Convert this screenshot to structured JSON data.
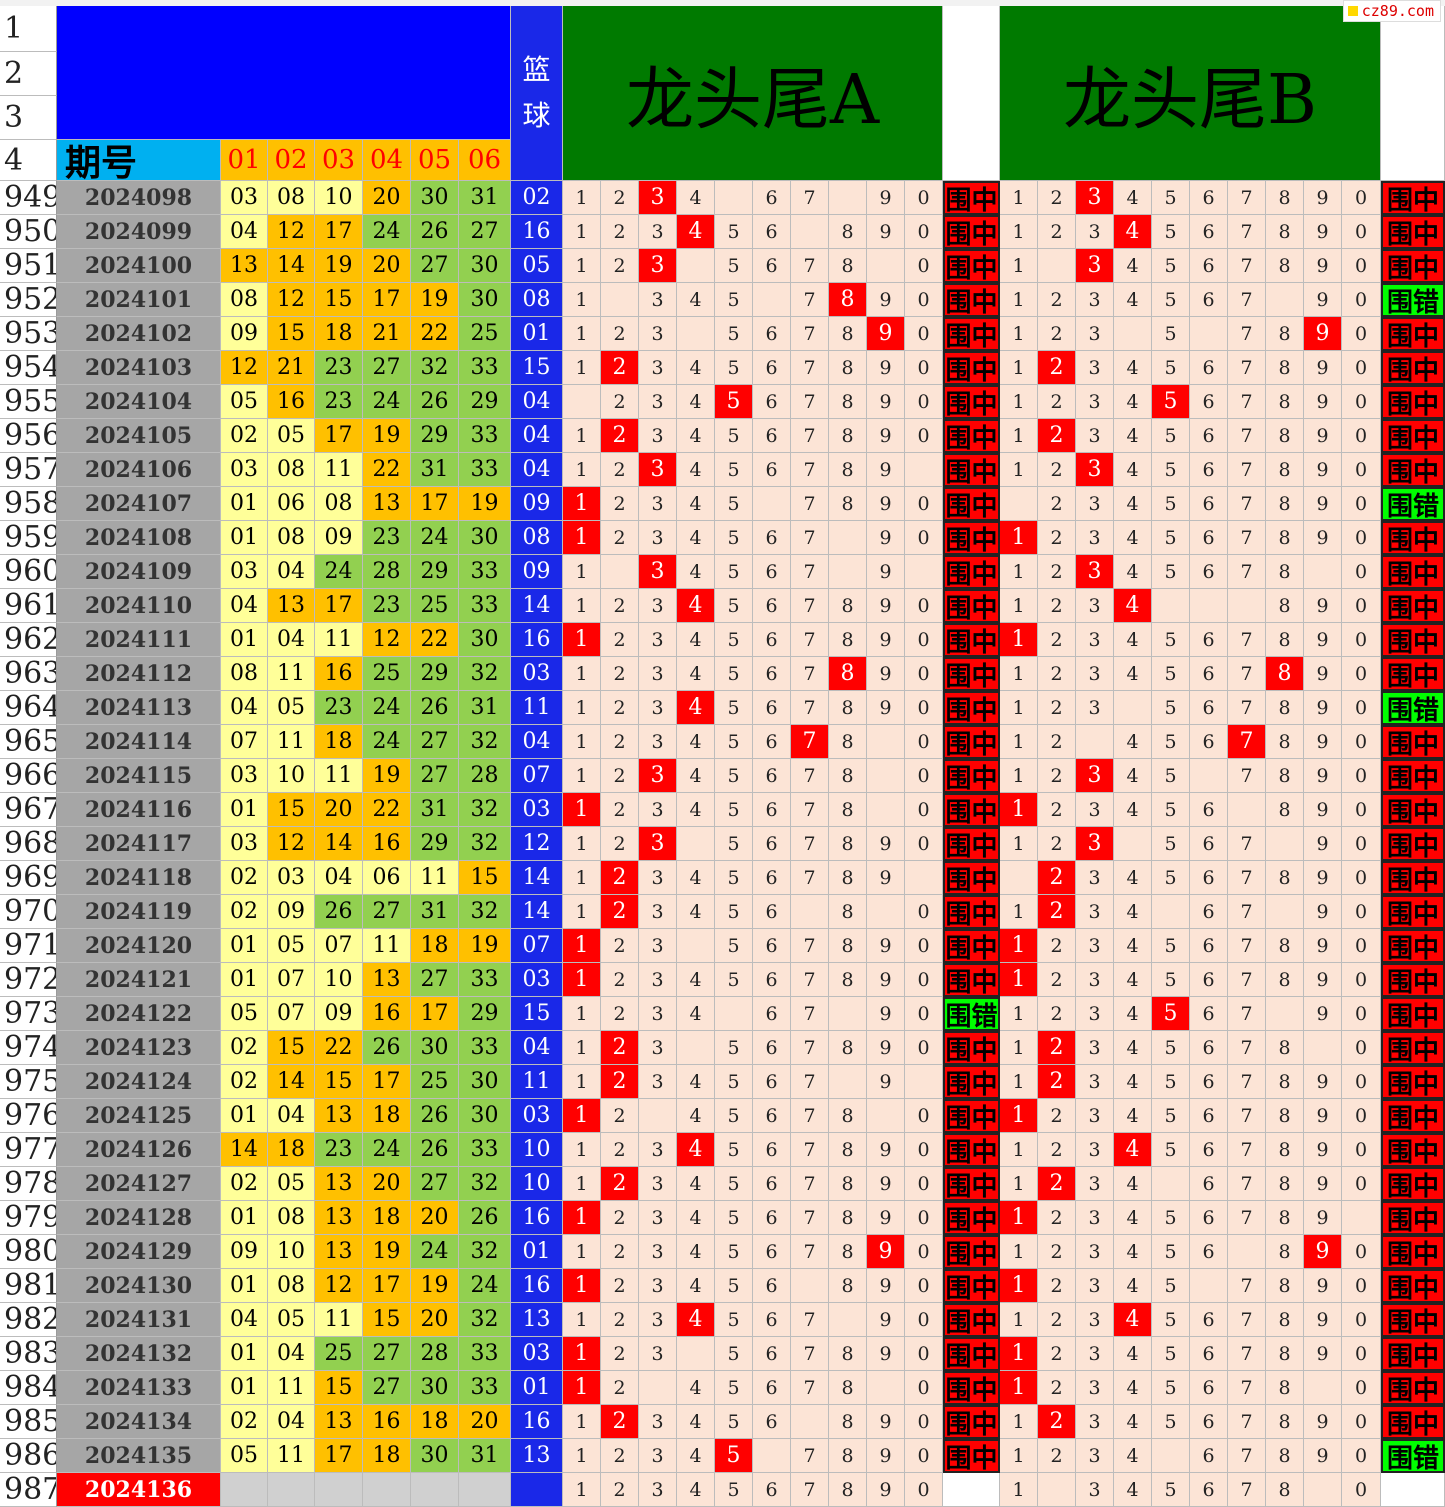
{
  "logo": {
    "text": "cz89.com"
  },
  "header": {
    "label": "期号",
    "positions": [
      "01",
      "02",
      "03",
      "04",
      "05",
      "06"
    ],
    "basketball_chars": [
      "篮",
      "球"
    ],
    "title_a": "龙头尾A",
    "title_b": "龙头尾B"
  },
  "header_rows": [
    "1",
    "2",
    "3",
    "4"
  ],
  "results": {
    "hit": "围中",
    "miss": "围错"
  },
  "rows": [
    {
      "row": "949",
      "period": "2024098",
      "balls": [
        "03",
        "08",
        "10",
        "20",
        "30",
        "31"
      ],
      "basket": "02",
      "a_blank": [
        4,
        7
      ],
      "a_hit": [
        2
      ],
      "a_res": "hit",
      "b_blank": [],
      "b_hit": [
        2
      ],
      "b_res": "hit"
    },
    {
      "row": "950",
      "period": "2024099",
      "balls": [
        "04",
        "12",
        "17",
        "24",
        "26",
        "27"
      ],
      "basket": "16",
      "a_blank": [
        6
      ],
      "a_hit": [
        3
      ],
      "a_res": "hit",
      "b_blank": [],
      "b_hit": [
        3
      ],
      "b_res": "hit"
    },
    {
      "row": "951",
      "period": "2024100",
      "balls": [
        "13",
        "14",
        "19",
        "20",
        "27",
        "30"
      ],
      "basket": "05",
      "a_blank": [
        3,
        8
      ],
      "a_hit": [
        2
      ],
      "a_res": "hit",
      "b_blank": [
        1
      ],
      "b_hit": [
        2
      ],
      "b_res": "hit"
    },
    {
      "row": "952",
      "period": "2024101",
      "balls": [
        "08",
        "12",
        "15",
        "17",
        "19",
        "30"
      ],
      "basket": "08",
      "a_blank": [
        1,
        5
      ],
      "a_hit": [
        7
      ],
      "a_res": "hit",
      "b_blank": [
        7
      ],
      "b_hit": [],
      "b_res": "miss"
    },
    {
      "row": "953",
      "period": "2024102",
      "balls": [
        "09",
        "15",
        "18",
        "21",
        "22",
        "25"
      ],
      "basket": "01",
      "a_blank": [
        3
      ],
      "a_hit": [
        8
      ],
      "a_res": "hit",
      "b_blank": [
        3,
        5
      ],
      "b_hit": [
        8
      ],
      "b_res": "hit"
    },
    {
      "row": "954",
      "period": "2024103",
      "balls": [
        "12",
        "21",
        "23",
        "27",
        "32",
        "33"
      ],
      "basket": "15",
      "a_blank": [],
      "a_hit": [
        1
      ],
      "a_res": "hit",
      "b_blank": [],
      "b_hit": [
        1
      ],
      "b_res": "hit"
    },
    {
      "row": "955",
      "period": "2024104",
      "balls": [
        "05",
        "16",
        "23",
        "24",
        "26",
        "29"
      ],
      "basket": "04",
      "a_blank": [
        0
      ],
      "a_hit": [
        4
      ],
      "a_res": "hit",
      "b_blank": [],
      "b_hit": [
        4
      ],
      "b_res": "hit"
    },
    {
      "row": "956",
      "period": "2024105",
      "balls": [
        "02",
        "05",
        "17",
        "19",
        "29",
        "33"
      ],
      "basket": "04",
      "a_blank": [],
      "a_hit": [
        1
      ],
      "a_res": "hit",
      "b_blank": [],
      "b_hit": [
        1
      ],
      "b_res": "hit"
    },
    {
      "row": "957",
      "period": "2024106",
      "balls": [
        "03",
        "08",
        "11",
        "22",
        "31",
        "33"
      ],
      "basket": "04",
      "a_blank": [
        9
      ],
      "a_hit": [
        2
      ],
      "a_res": "hit",
      "b_blank": [],
      "b_hit": [
        2
      ],
      "b_res": "hit"
    },
    {
      "row": "958",
      "period": "2024107",
      "balls": [
        "01",
        "06",
        "08",
        "13",
        "17",
        "19"
      ],
      "basket": "09",
      "a_blank": [
        5
      ],
      "a_hit": [
        0
      ],
      "a_res": "hit",
      "b_blank": [
        0
      ],
      "b_hit": [],
      "b_res": "miss"
    },
    {
      "row": "959",
      "period": "2024108",
      "balls": [
        "01",
        "08",
        "09",
        "23",
        "24",
        "30"
      ],
      "basket": "08",
      "a_blank": [
        7
      ],
      "a_hit": [
        0
      ],
      "a_res": "hit",
      "b_blank": [],
      "b_hit": [
        0
      ],
      "b_res": "hit"
    },
    {
      "row": "960",
      "period": "2024109",
      "balls": [
        "03",
        "04",
        "24",
        "28",
        "29",
        "33"
      ],
      "basket": "09",
      "a_blank": [
        1,
        7,
        9
      ],
      "a_hit": [
        2
      ],
      "a_res": "hit",
      "b_blank": [
        8
      ],
      "b_hit": [
        2
      ],
      "b_res": "hit"
    },
    {
      "row": "961",
      "period": "2024110",
      "balls": [
        "04",
        "13",
        "17",
        "23",
        "25",
        "33"
      ],
      "basket": "14",
      "a_blank": [],
      "a_hit": [
        3
      ],
      "a_res": "hit",
      "b_blank": [
        4,
        5,
        6
      ],
      "b_hit": [
        3
      ],
      "b_res": "hit"
    },
    {
      "row": "962",
      "period": "2024111",
      "balls": [
        "01",
        "04",
        "11",
        "12",
        "22",
        "30"
      ],
      "basket": "16",
      "a_blank": [],
      "a_hit": [
        0
      ],
      "a_res": "hit",
      "b_blank": [],
      "b_hit": [
        0
      ],
      "b_res": "hit"
    },
    {
      "row": "963",
      "period": "2024112",
      "balls": [
        "08",
        "11",
        "16",
        "25",
        "29",
        "32"
      ],
      "basket": "03",
      "a_blank": [],
      "a_hit": [
        7
      ],
      "a_res": "hit",
      "b_blank": [],
      "b_hit": [
        7
      ],
      "b_res": "hit"
    },
    {
      "row": "964",
      "period": "2024113",
      "balls": [
        "04",
        "05",
        "23",
        "24",
        "26",
        "31"
      ],
      "basket": "11",
      "a_blank": [],
      "a_hit": [
        3
      ],
      "a_res": "hit",
      "b_blank": [
        3
      ],
      "b_hit": [],
      "b_res": "miss"
    },
    {
      "row": "965",
      "period": "2024114",
      "balls": [
        "07",
        "11",
        "18",
        "24",
        "27",
        "32"
      ],
      "basket": "04",
      "a_blank": [
        8
      ],
      "a_hit": [
        6
      ],
      "a_res": "hit",
      "b_blank": [
        2
      ],
      "b_hit": [
        6
      ],
      "b_res": "hit"
    },
    {
      "row": "966",
      "period": "2024115",
      "balls": [
        "03",
        "10",
        "11",
        "19",
        "27",
        "28"
      ],
      "basket": "07",
      "a_blank": [
        8
      ],
      "a_hit": [
        2
      ],
      "a_res": "hit",
      "b_blank": [
        5
      ],
      "b_hit": [
        2
      ],
      "b_res": "hit"
    },
    {
      "row": "967",
      "period": "2024116",
      "balls": [
        "01",
        "15",
        "20",
        "22",
        "31",
        "32"
      ],
      "basket": "03",
      "a_blank": [
        8
      ],
      "a_hit": [
        0
      ],
      "a_res": "hit",
      "b_blank": [
        6
      ],
      "b_hit": [
        0
      ],
      "b_res": "hit"
    },
    {
      "row": "968",
      "period": "2024117",
      "balls": [
        "03",
        "12",
        "14",
        "16",
        "29",
        "32"
      ],
      "basket": "12",
      "a_blank": [
        3
      ],
      "a_hit": [
        2
      ],
      "a_res": "hit",
      "b_blank": [
        3,
        7
      ],
      "b_hit": [
        2
      ],
      "b_res": "hit"
    },
    {
      "row": "969",
      "period": "2024118",
      "balls": [
        "02",
        "03",
        "04",
        "06",
        "11",
        "15"
      ],
      "basket": "14",
      "a_blank": [
        9
      ],
      "a_hit": [
        1
      ],
      "a_res": "hit",
      "b_blank": [
        0
      ],
      "b_hit": [
        1
      ],
      "b_res": "hit"
    },
    {
      "row": "970",
      "period": "2024119",
      "balls": [
        "02",
        "09",
        "26",
        "27",
        "31",
        "32"
      ],
      "basket": "14",
      "a_blank": [
        6,
        8
      ],
      "a_hit": [
        1
      ],
      "a_res": "hit",
      "b_blank": [
        4,
        7
      ],
      "b_hit": [
        1
      ],
      "b_res": "hit"
    },
    {
      "row": "971",
      "period": "2024120",
      "balls": [
        "01",
        "05",
        "07",
        "11",
        "18",
        "19"
      ],
      "basket": "07",
      "a_blank": [
        3
      ],
      "a_hit": [
        0
      ],
      "a_res": "hit",
      "b_blank": [],
      "b_hit": [
        0
      ],
      "b_res": "hit"
    },
    {
      "row": "972",
      "period": "2024121",
      "balls": [
        "01",
        "07",
        "10",
        "13",
        "27",
        "33"
      ],
      "basket": "03",
      "a_blank": [],
      "a_hit": [
        0
      ],
      "a_res": "hit",
      "b_blank": [],
      "b_hit": [
        0
      ],
      "b_res": "hit"
    },
    {
      "row": "973",
      "period": "2024122",
      "balls": [
        "05",
        "07",
        "09",
        "16",
        "17",
        "29"
      ],
      "basket": "15",
      "a_blank": [
        4,
        7
      ],
      "a_hit": [],
      "a_res": "miss",
      "b_blank": [
        7
      ],
      "b_hit": [
        4
      ],
      "b_res": "hit"
    },
    {
      "row": "974",
      "period": "2024123",
      "balls": [
        "02",
        "15",
        "22",
        "26",
        "30",
        "33"
      ],
      "basket": "04",
      "a_blank": [
        3
      ],
      "a_hit": [
        1
      ],
      "a_res": "hit",
      "b_blank": [
        8
      ],
      "b_hit": [
        1
      ],
      "b_res": "hit"
    },
    {
      "row": "975",
      "period": "2024124",
      "balls": [
        "02",
        "14",
        "15",
        "17",
        "25",
        "30"
      ],
      "basket": "11",
      "a_blank": [
        7,
        9
      ],
      "a_hit": [
        1
      ],
      "a_res": "hit",
      "b_blank": [],
      "b_hit": [
        1
      ],
      "b_res": "hit"
    },
    {
      "row": "976",
      "period": "2024125",
      "balls": [
        "01",
        "04",
        "13",
        "18",
        "26",
        "30"
      ],
      "basket": "03",
      "a_blank": [
        2,
        8
      ],
      "a_hit": [
        0
      ],
      "a_res": "hit",
      "b_blank": [],
      "b_hit": [
        0
      ],
      "b_res": "hit"
    },
    {
      "row": "977",
      "period": "2024126",
      "balls": [
        "14",
        "18",
        "23",
        "24",
        "26",
        "33"
      ],
      "basket": "10",
      "a_blank": [],
      "a_hit": [
        3
      ],
      "a_res": "hit",
      "b_blank": [],
      "b_hit": [
        3
      ],
      "b_res": "hit"
    },
    {
      "row": "978",
      "period": "2024127",
      "balls": [
        "02",
        "05",
        "13",
        "20",
        "27",
        "32"
      ],
      "basket": "10",
      "a_blank": [],
      "a_hit": [
        1
      ],
      "a_res": "hit",
      "b_blank": [
        4
      ],
      "b_hit": [
        1
      ],
      "b_res": "hit"
    },
    {
      "row": "979",
      "period": "2024128",
      "balls": [
        "01",
        "08",
        "13",
        "18",
        "20",
        "26"
      ],
      "basket": "16",
      "a_blank": [],
      "a_hit": [
        0
      ],
      "a_res": "hit",
      "b_blank": [
        9
      ],
      "b_hit": [
        0
      ],
      "b_res": "hit"
    },
    {
      "row": "980",
      "period": "2024129",
      "balls": [
        "09",
        "10",
        "13",
        "19",
        "24",
        "32"
      ],
      "basket": "01",
      "a_blank": [],
      "a_hit": [
        8
      ],
      "a_res": "hit",
      "b_blank": [
        6
      ],
      "b_hit": [
        8
      ],
      "b_res": "hit"
    },
    {
      "row": "981",
      "period": "2024130",
      "balls": [
        "01",
        "08",
        "12",
        "17",
        "19",
        "24"
      ],
      "basket": "16",
      "a_blank": [
        6
      ],
      "a_hit": [
        0
      ],
      "a_res": "hit",
      "b_blank": [
        5
      ],
      "b_hit": [
        0
      ],
      "b_res": "hit"
    },
    {
      "row": "982",
      "period": "2024131",
      "balls": [
        "04",
        "05",
        "11",
        "15",
        "20",
        "32"
      ],
      "basket": "13",
      "a_blank": [
        7
      ],
      "a_hit": [
        3
      ],
      "a_res": "hit",
      "b_blank": [],
      "b_hit": [
        3
      ],
      "b_res": "hit"
    },
    {
      "row": "983",
      "period": "2024132",
      "balls": [
        "01",
        "04",
        "25",
        "27",
        "28",
        "33"
      ],
      "basket": "03",
      "a_blank": [
        3
      ],
      "a_hit": [
        0
      ],
      "a_res": "hit",
      "b_blank": [],
      "b_hit": [
        0
      ],
      "b_res": "hit"
    },
    {
      "row": "984",
      "period": "2024133",
      "balls": [
        "01",
        "11",
        "15",
        "27",
        "30",
        "33"
      ],
      "basket": "01",
      "a_blank": [
        2,
        8
      ],
      "a_hit": [
        0
      ],
      "a_res": "hit",
      "b_blank": [
        8
      ],
      "b_hit": [
        0
      ],
      "b_res": "hit"
    },
    {
      "row": "985",
      "period": "2024134",
      "balls": [
        "02",
        "04",
        "13",
        "16",
        "18",
        "20"
      ],
      "basket": "16",
      "a_blank": [
        6
      ],
      "a_hit": [
        1
      ],
      "a_res": "hit",
      "b_blank": [],
      "b_hit": [
        1
      ],
      "b_res": "hit"
    },
    {
      "row": "986",
      "period": "2024135",
      "balls": [
        "05",
        "11",
        "17",
        "18",
        "30",
        "31"
      ],
      "basket": "13",
      "a_blank": [
        5
      ],
      "a_hit": [
        4
      ],
      "a_res": "hit",
      "b_blank": [
        4
      ],
      "b_hit": [],
      "b_res": "miss"
    },
    {
      "row": "987",
      "period": "2024136",
      "balls": [],
      "basket": "",
      "a_blank": [],
      "a_hit": [],
      "a_res": "none",
      "b_blank": [
        1,
        8
      ],
      "b_hit": [],
      "b_res": "none",
      "current": true
    }
  ],
  "digits": [
    "1",
    "2",
    "3",
    "4",
    "5",
    "6",
    "7",
    "8",
    "9",
    "0"
  ],
  "colors": {
    "hit": "#ff0000",
    "miss": "#00ff00",
    "blue_header": "#0000ff",
    "green_header": "#007a00"
  }
}
